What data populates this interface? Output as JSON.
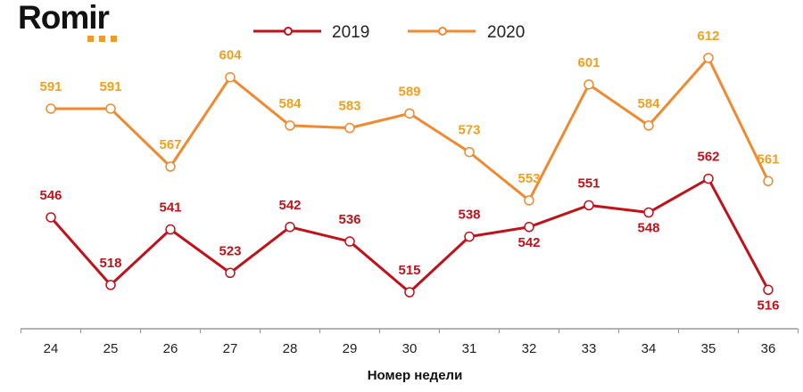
{
  "brand": {
    "logo_text": "Romir",
    "accent": "#f39b1f"
  },
  "chart_data": {
    "type": "line",
    "title": "",
    "xlabel": "Номер недели",
    "ylabel": "",
    "categories": [
      "24",
      "25",
      "26",
      "27",
      "28",
      "29",
      "30",
      "31",
      "32",
      "33",
      "34",
      "35",
      "36"
    ],
    "ylim": [
      515,
      612
    ],
    "grid": false,
    "legend_position": "top-center",
    "series": [
      {
        "name": "2019",
        "color": "#c0121b",
        "values": [
          546,
          518,
          541,
          523,
          542,
          536,
          515,
          538,
          542,
          551,
          548,
          562,
          516
        ],
        "label_positions": [
          "above",
          "above",
          "above",
          "above",
          "above",
          "above",
          "above",
          "above",
          "below",
          "above",
          "below",
          "above",
          "below"
        ]
      },
      {
        "name": "2020",
        "color": "#f08a30",
        "label_color": "#f0a020",
        "values": [
          591,
          591,
          567,
          604,
          584,
          583,
          589,
          573,
          553,
          601,
          584,
          612,
          561
        ],
        "label_positions": [
          "above",
          "above",
          "above",
          "above",
          "above",
          "above",
          "above",
          "above",
          "above",
          "above",
          "above",
          "above",
          "above"
        ]
      }
    ]
  }
}
